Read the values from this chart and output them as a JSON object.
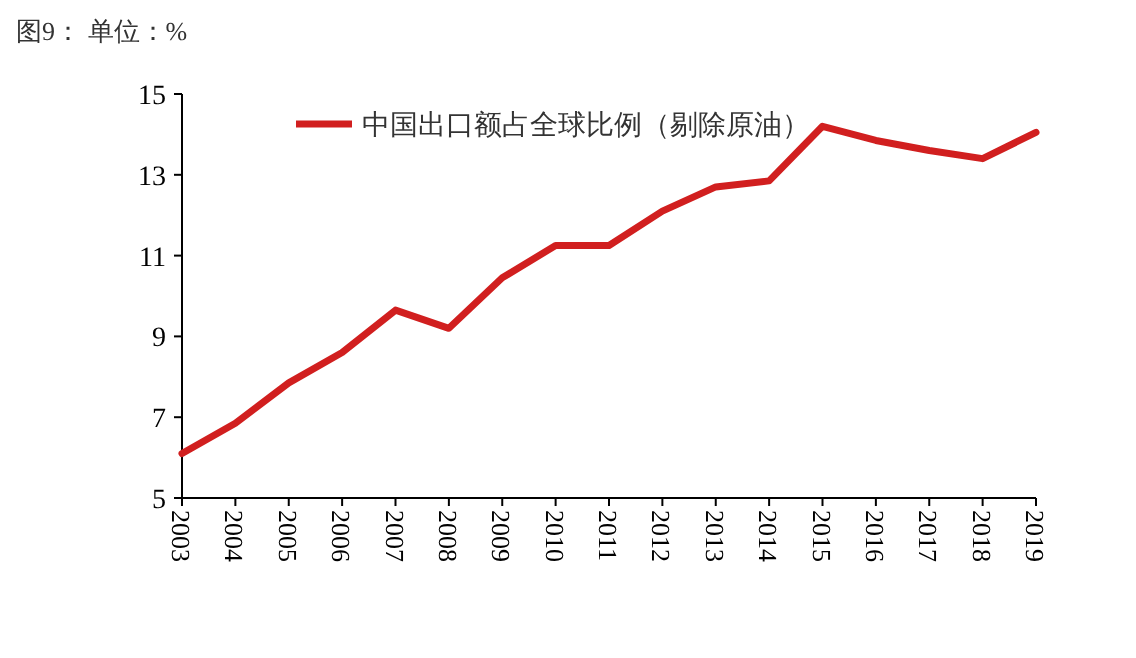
{
  "chart_data": {
    "type": "line",
    "title": "图9：  单位：%",
    "categories": [
      "2003",
      "2004",
      "2005",
      "2006",
      "2007",
      "2008",
      "2009",
      "2010",
      "2011",
      "2012",
      "2013",
      "2014",
      "2015",
      "2016",
      "2017",
      "2018",
      "2019"
    ],
    "series": [
      {
        "name": "中国出口额占全球比例（剔除原油）",
        "color": "#d11f1f",
        "values": [
          6.1,
          6.85,
          7.85,
          8.6,
          9.65,
          9.2,
          10.45,
          11.25,
          11.25,
          12.1,
          12.7,
          12.85,
          14.2,
          13.85,
          13.6,
          13.4,
          14.05
        ]
      }
    ],
    "ylim": [
      5,
      15
    ],
    "yticks": [
      5,
      7,
      9,
      11,
      13,
      15
    ],
    "grid": false,
    "legend": "top",
    "marker": "none",
    "line_style": "solid"
  }
}
